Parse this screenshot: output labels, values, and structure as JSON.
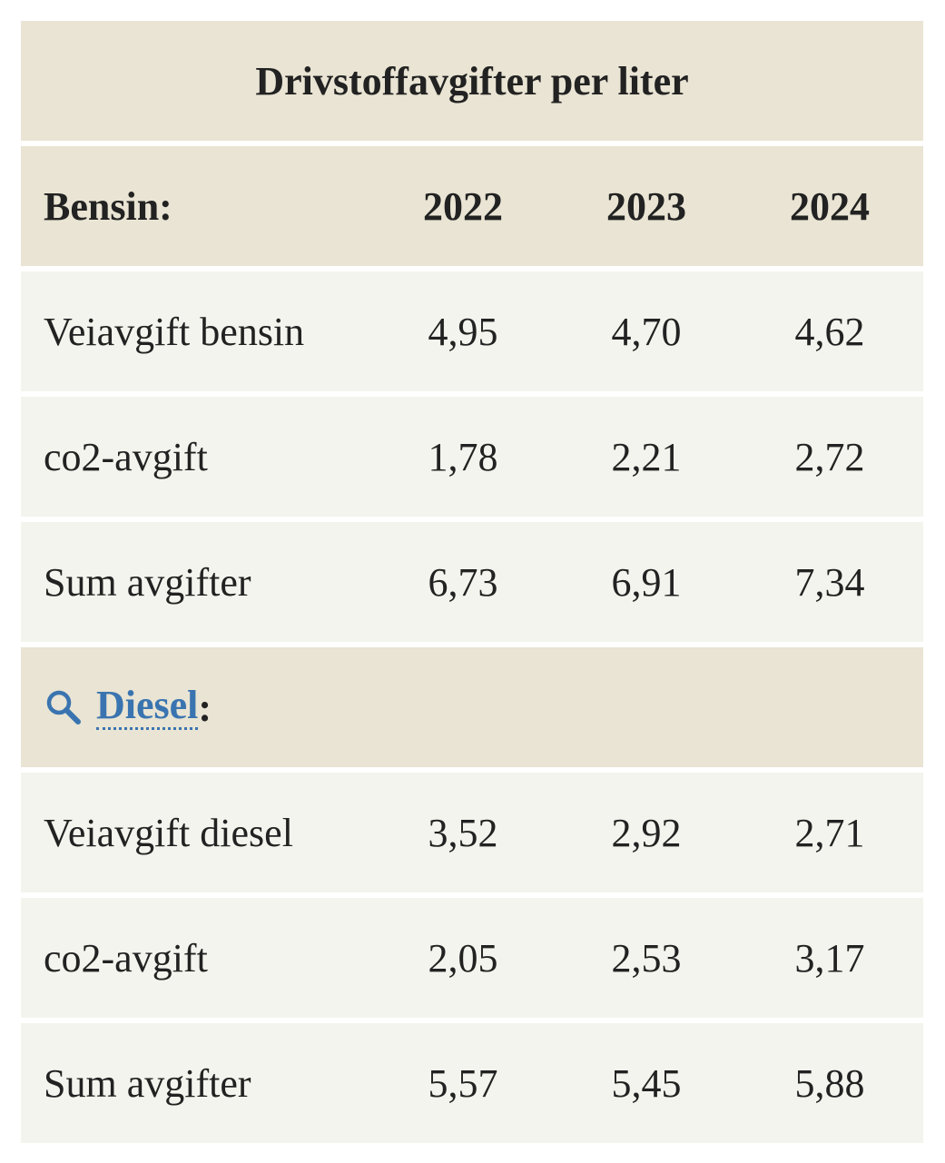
{
  "table": {
    "title": "Drivstoffavgifter per liter",
    "bensin": {
      "header_label": "Bensin:",
      "years": [
        "2022",
        "2023",
        "2024"
      ],
      "rows": [
        {
          "label": "Veiavgift bensin",
          "values": [
            "4,95",
            "4,70",
            "4,62"
          ]
        },
        {
          "label": "co2-avgift",
          "values": [
            "1,78",
            "2,21",
            "2,72"
          ]
        },
        {
          "label": "Sum avgifter",
          "values": [
            "6,73",
            "6,91",
            "7,34"
          ]
        }
      ]
    },
    "diesel": {
      "link_text": "Diesel",
      "colon": ":",
      "icon": "search-icon",
      "rows": [
        {
          "label": "Veiavgift diesel",
          "values": [
            "3,52",
            "2,92",
            "2,71"
          ]
        },
        {
          "label": "co2-avgift",
          "values": [
            "2,05",
            "2,53",
            "3,17"
          ]
        },
        {
          "label": "Sum avgifter",
          "values": [
            "5,57",
            "5,45",
            "5,88"
          ]
        }
      ]
    },
    "colors": {
      "header_bg": "#e9e4d3",
      "row_bg": "#f4f4ee",
      "link": "#3a74b0"
    }
  }
}
